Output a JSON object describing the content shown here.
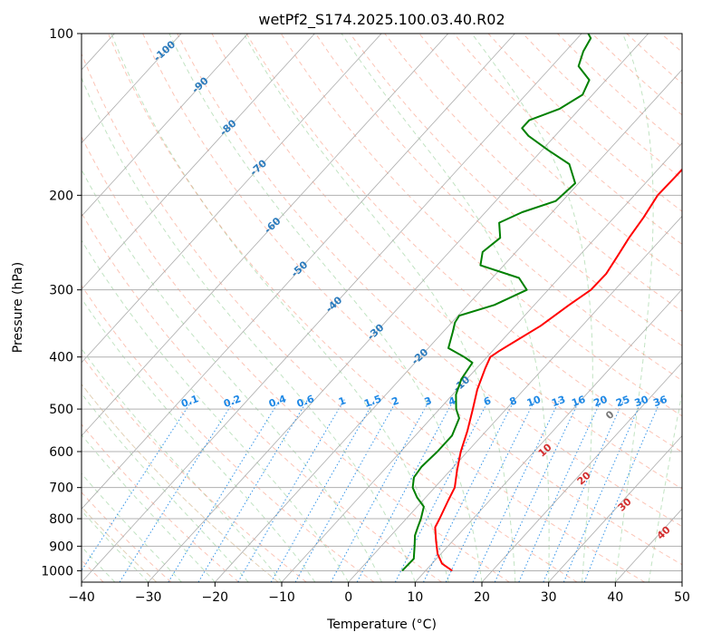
{
  "chart_data": {
    "type": "line",
    "title": "wetPf2_S174.2025.100.03.40.R02",
    "xlabel": "Temperature (°C)",
    "ylabel": "Pressure (hPa)",
    "xlim": [
      -40,
      50
    ],
    "ylim": [
      1050,
      100
    ],
    "y_scale": "log",
    "grid": true,
    "x_ticks": [
      -40,
      -30,
      -20,
      -10,
      0,
      10,
      20,
      30,
      40,
      50
    ],
    "y_ticks": [
      1000,
      900,
      800,
      700,
      600,
      500,
      400,
      300,
      200,
      100
    ],
    "skew_labels": [
      "-100",
      "-90",
      "-80",
      "-70",
      "-60",
      "-50",
      "-40",
      "-30",
      "-20",
      "-10"
    ],
    "dry_adiabat_label": "0",
    "moist_adiabat_labels": [
      "10",
      "20",
      "30",
      "40"
    ],
    "mixing_ratio_labels": [
      "0.1",
      "0.2",
      "0.4",
      "0.6",
      "1",
      "1.5",
      "2",
      "3",
      "4",
      "6",
      "8",
      "10",
      "13",
      "16",
      "20",
      "25",
      "30",
      "36"
    ],
    "series": [
      {
        "color": "#ff0000",
        "values": [
          {
            "p": 1000,
            "t": 14.0
          },
          {
            "p": 970,
            "t": 11.5
          },
          {
            "p": 930,
            "t": 9.5
          },
          {
            "p": 880,
            "t": 7.5
          },
          {
            "p": 830,
            "t": 5.5
          },
          {
            "p": 800,
            "t": 5.0
          },
          {
            "p": 740,
            "t": 3.8
          },
          {
            "p": 700,
            "t": 3.0
          },
          {
            "p": 650,
            "t": 1.0
          },
          {
            "p": 600,
            "t": -1.0
          },
          {
            "p": 550,
            "t": -2.8
          },
          {
            "p": 500,
            "t": -5.0
          },
          {
            "p": 460,
            "t": -7.0
          },
          {
            "p": 420,
            "t": -8.7
          },
          {
            "p": 400,
            "t": -9.5
          },
          {
            "p": 390,
            "t": -9.0
          },
          {
            "p": 375,
            "t": -8.0
          },
          {
            "p": 350,
            "t": -6.2
          },
          {
            "p": 320,
            "t": -4.8
          },
          {
            "p": 300,
            "t": -3.6
          },
          {
            "p": 280,
            "t": -3.5
          },
          {
            "p": 260,
            "t": -4.2
          },
          {
            "p": 240,
            "t": -5.0
          },
          {
            "p": 220,
            "t": -5.6
          },
          {
            "p": 200,
            "t": -6.5
          },
          {
            "p": 185,
            "t": -6.4
          },
          {
            "p": 170,
            "t": -6.3
          },
          {
            "p": 155,
            "t": -6.4
          },
          {
            "p": 140,
            "t": -7.0
          },
          {
            "p": 125,
            "t": -7.5
          },
          {
            "p": 115,
            "t": -9.0
          },
          {
            "p": 108,
            "t": -8.8
          },
          {
            "p": 100,
            "t": -9.0
          }
        ]
      },
      {
        "color": "#008000",
        "values": [
          {
            "p": 1000,
            "t": 6.5
          },
          {
            "p": 950,
            "t": 6.6
          },
          {
            "p": 900,
            "t": 5.0
          },
          {
            "p": 860,
            "t": 3.6
          },
          {
            "p": 830,
            "t": 2.9
          },
          {
            "p": 800,
            "t": 2.2
          },
          {
            "p": 760,
            "t": 1.0
          },
          {
            "p": 730,
            "t": -1.3
          },
          {
            "p": 700,
            "t": -3.3
          },
          {
            "p": 670,
            "t": -4.5
          },
          {
            "p": 640,
            "t": -4.8
          },
          {
            "p": 600,
            "t": -4.5
          },
          {
            "p": 560,
            "t": -4.5
          },
          {
            "p": 520,
            "t": -5.8
          },
          {
            "p": 500,
            "t": -7.5
          },
          {
            "p": 470,
            "t": -9.5
          },
          {
            "p": 440,
            "t": -10.8
          },
          {
            "p": 410,
            "t": -11.4
          },
          {
            "p": 400,
            "t": -13.4
          },
          {
            "p": 385,
            "t": -17.0
          },
          {
            "p": 360,
            "t": -18.5
          },
          {
            "p": 345,
            "t": -19.5
          },
          {
            "p": 335,
            "t": -19.8
          },
          {
            "p": 320,
            "t": -16.0
          },
          {
            "p": 300,
            "t": -13.2
          },
          {
            "p": 285,
            "t": -16.0
          },
          {
            "p": 270,
            "t": -23.5
          },
          {
            "p": 255,
            "t": -25.0
          },
          {
            "p": 240,
            "t": -24.3
          },
          {
            "p": 225,
            "t": -26.5
          },
          {
            "p": 215,
            "t": -24.5
          },
          {
            "p": 205,
            "t": -21.0
          },
          {
            "p": 190,
            "t": -20.5
          },
          {
            "p": 175,
            "t": -24.0
          },
          {
            "p": 165,
            "t": -29.0
          },
          {
            "p": 155,
            "t": -34.0
          },
          {
            "p": 150,
            "t": -36.0
          },
          {
            "p": 145,
            "t": -36.0
          },
          {
            "p": 138,
            "t": -33.0
          },
          {
            "p": 130,
            "t": -31.5
          },
          {
            "p": 122,
            "t": -32.5
          },
          {
            "p": 115,
            "t": -36.0
          },
          {
            "p": 108,
            "t": -37.3
          },
          {
            "p": 102,
            "t": -38.0
          },
          {
            "p": 100,
            "t": -39.0
          }
        ]
      }
    ]
  }
}
